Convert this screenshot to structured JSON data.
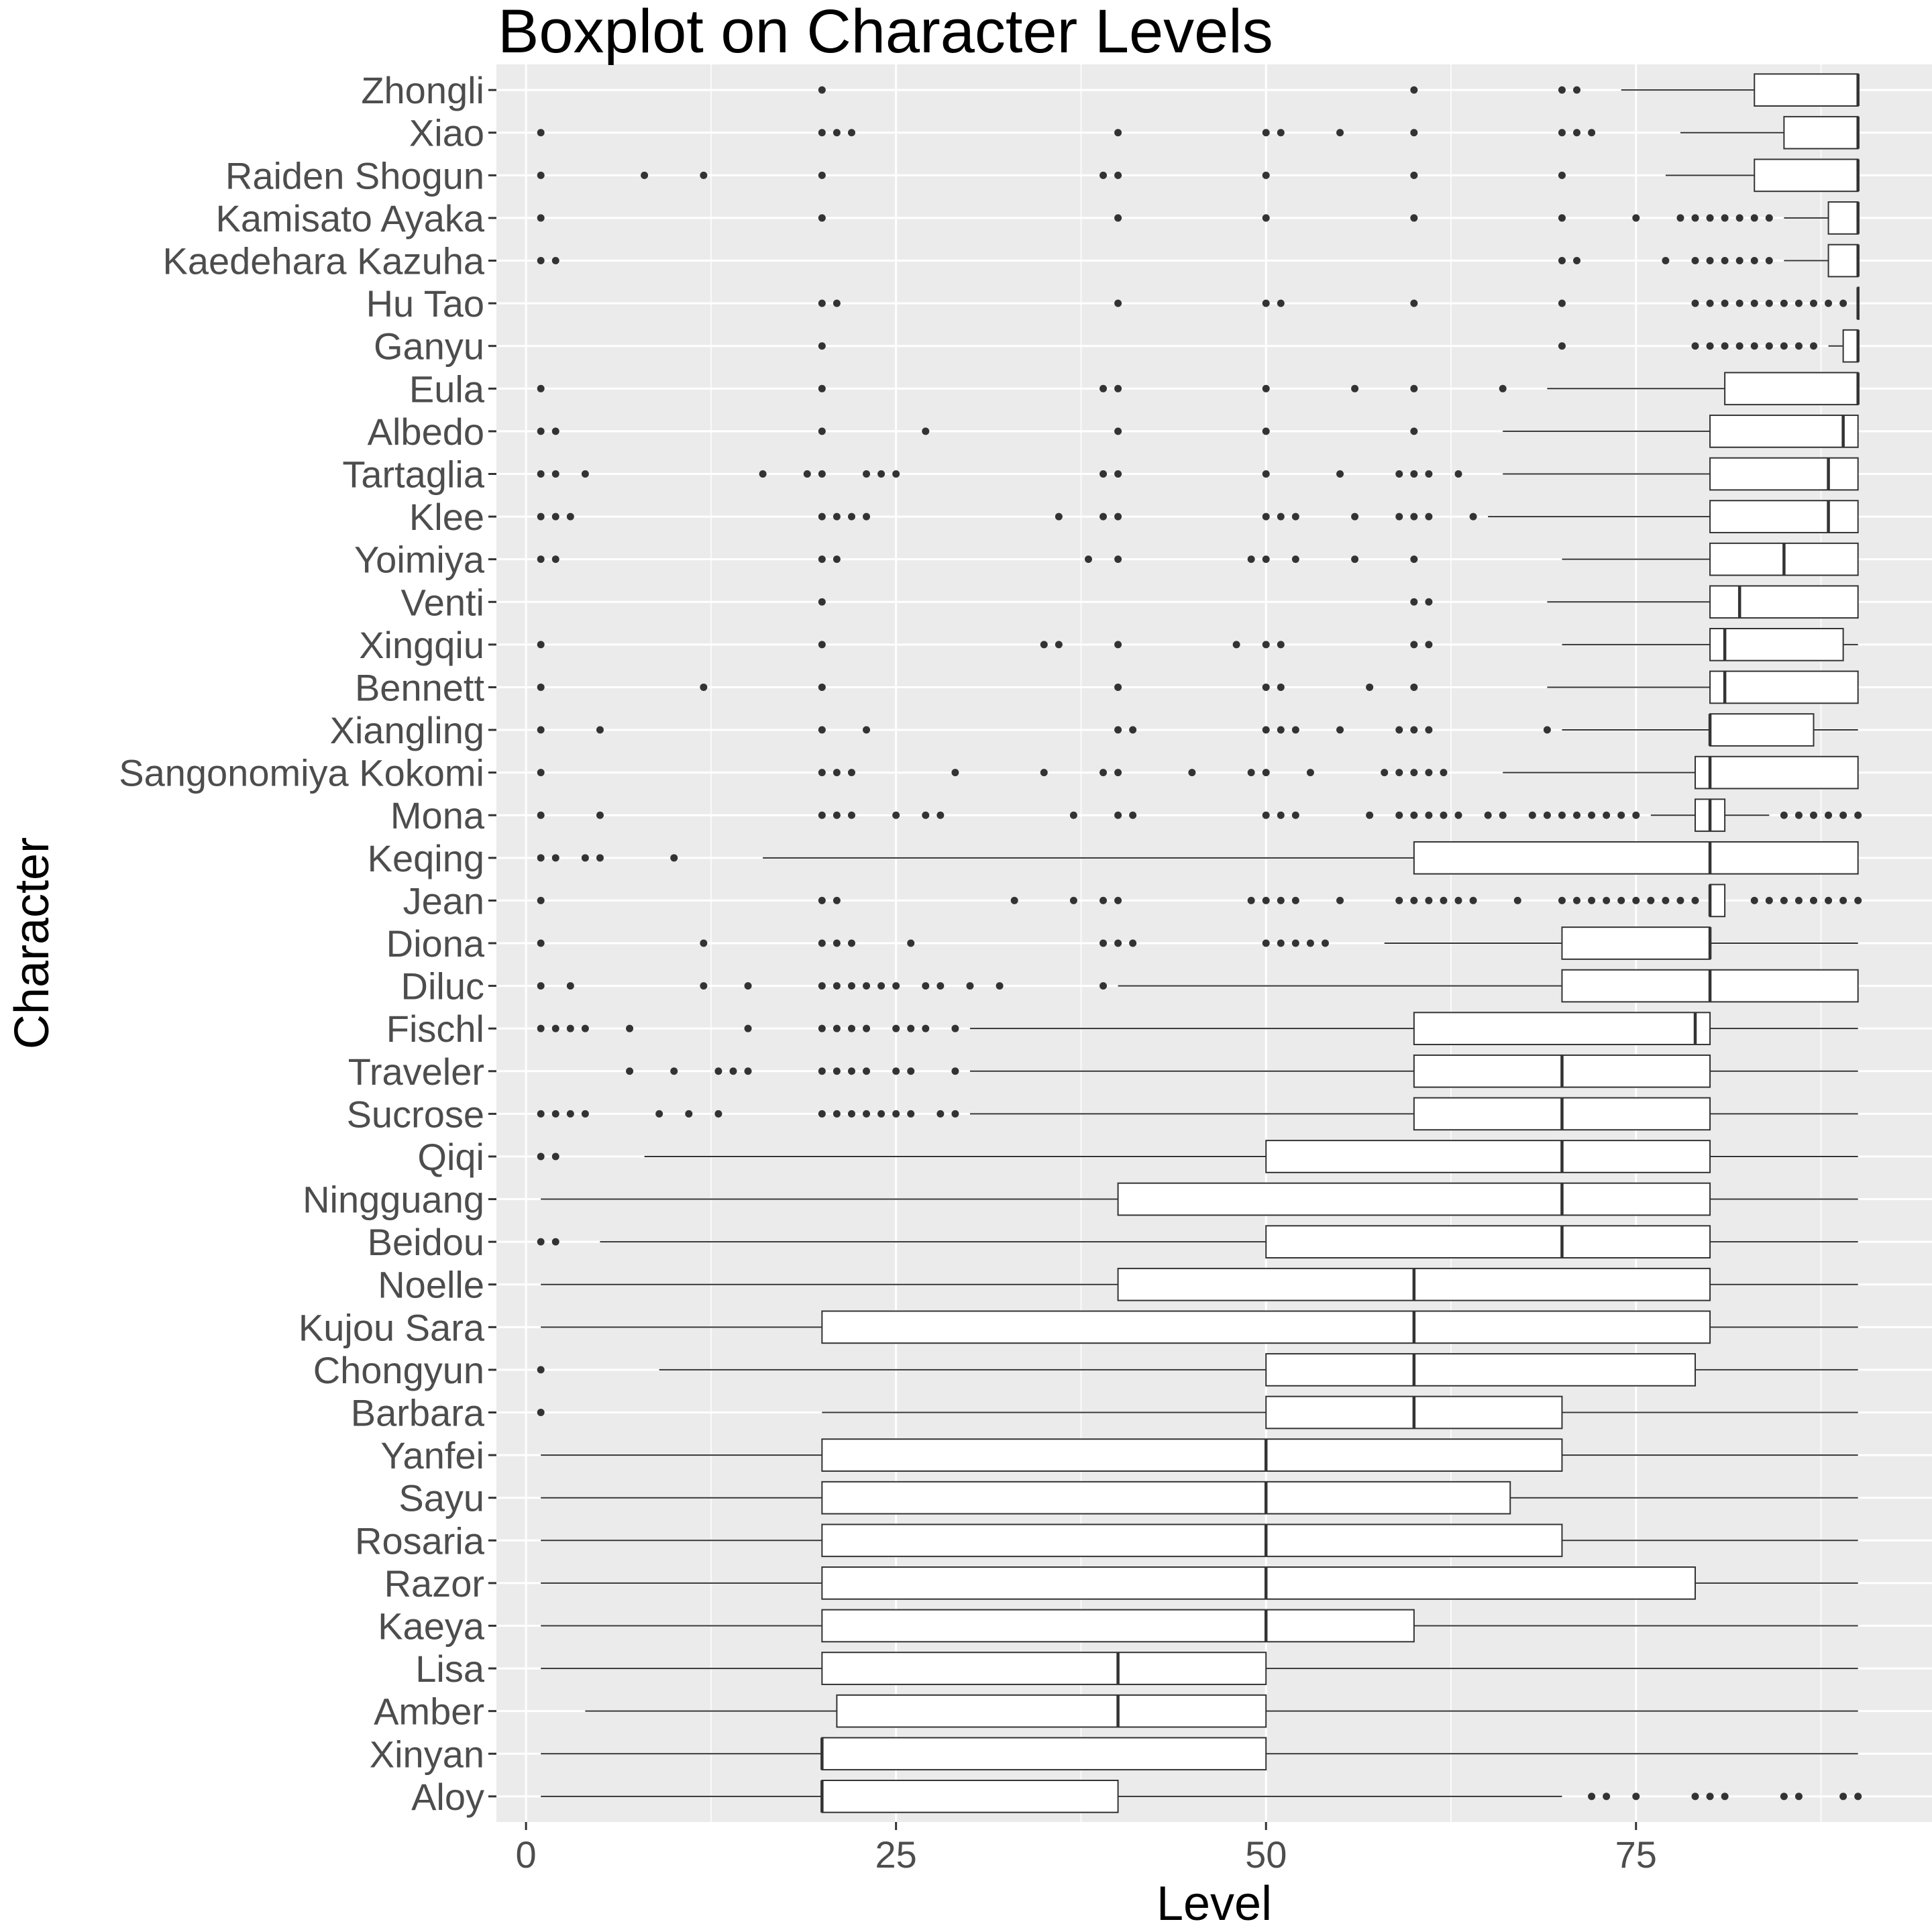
{
  "chart_data": {
    "type": "boxplot",
    "title": "Boxplot on Character Levels",
    "xlabel": "Level",
    "ylabel": "Character",
    "xlim": [
      -2,
      95
    ],
    "xticks": [
      0,
      25,
      50,
      75
    ],
    "grid": true,
    "colors": {
      "panel": "#ebebeb",
      "grid": "#ffffff",
      "box_fill": "#ffffff",
      "stroke": "#333333",
      "tick_text": "#4d4d4d"
    },
    "series": [
      {
        "name": "Zhongli",
        "whisker_low": 74,
        "q1": 83,
        "median": 90,
        "q3": 90,
        "whisker_high": 90,
        "outliers": [
          20,
          60,
          70,
          71
        ]
      },
      {
        "name": "Xiao",
        "whisker_low": 78,
        "q1": 85,
        "median": 90,
        "q3": 90,
        "whisker_high": 90,
        "outliers": [
          1,
          20,
          21,
          22,
          40,
          50,
          51,
          55,
          60,
          70,
          71,
          72
        ]
      },
      {
        "name": "Raiden Shogun",
        "whisker_low": 77,
        "q1": 83,
        "median": 90,
        "q3": 90,
        "whisker_high": 90,
        "outliers": [
          1,
          8,
          12,
          20,
          39,
          40,
          50,
          60,
          70
        ]
      },
      {
        "name": "Kamisato Ayaka",
        "whisker_low": 85,
        "q1": 88,
        "median": 90,
        "q3": 90,
        "whisker_high": 90,
        "outliers": [
          1,
          20,
          40,
          50,
          60,
          70,
          75,
          78,
          79,
          80,
          81,
          82,
          83,
          84
        ]
      },
      {
        "name": "Kaedehara Kazuha",
        "whisker_low": 85,
        "q1": 88,
        "median": 90,
        "q3": 90,
        "whisker_high": 90,
        "outliers": [
          1,
          2,
          70,
          71,
          77,
          79,
          80,
          81,
          82,
          83,
          84
        ]
      },
      {
        "name": "Hu Tao",
        "whisker_low": 90,
        "q1": 90,
        "median": 90,
        "q3": 90,
        "whisker_high": 90,
        "outliers": [
          20,
          21,
          40,
          50,
          51,
          60,
          70,
          79,
          80,
          81,
          82,
          83,
          84,
          85,
          86,
          87,
          88,
          89
        ]
      },
      {
        "name": "Ganyu",
        "whisker_low": 88,
        "q1": 89,
        "median": 90,
        "q3": 90,
        "whisker_high": 90,
        "outliers": [
          20,
          70,
          79,
          80,
          81,
          82,
          83,
          84,
          85,
          86,
          87
        ]
      },
      {
        "name": "Eula",
        "whisker_low": 69,
        "q1": 81,
        "median": 90,
        "q3": 90,
        "whisker_high": 90,
        "outliers": [
          1,
          20,
          39,
          40,
          50,
          56,
          60,
          66
        ]
      },
      {
        "name": "Albedo",
        "whisker_low": 66,
        "q1": 80,
        "median": 89,
        "q3": 90,
        "whisker_high": 90,
        "outliers": [
          1,
          2,
          20,
          27,
          40,
          50,
          60
        ]
      },
      {
        "name": "Tartaglia",
        "whisker_low": 66,
        "q1": 80,
        "median": 88,
        "q3": 90,
        "whisker_high": 90,
        "outliers": [
          1,
          2,
          4,
          16,
          19,
          20,
          23,
          24,
          25,
          39,
          40,
          50,
          55,
          59,
          60,
          61,
          63
        ]
      },
      {
        "name": "Klee",
        "whisker_low": 65,
        "q1": 80,
        "median": 88,
        "q3": 90,
        "whisker_high": 90,
        "outliers": [
          1,
          2,
          3,
          20,
          21,
          22,
          23,
          36,
          39,
          40,
          50,
          51,
          52,
          56,
          59,
          60,
          61,
          64
        ]
      },
      {
        "name": "Yoimiya",
        "whisker_low": 70,
        "q1": 80,
        "median": 85,
        "q3": 90,
        "whisker_high": 90,
        "outliers": [
          1,
          2,
          20,
          21,
          38,
          40,
          49,
          50,
          52,
          56,
          60
        ]
      },
      {
        "name": "Venti",
        "whisker_low": 69,
        "q1": 80,
        "median": 82,
        "q3": 90,
        "whisker_high": 90,
        "outliers": [
          20,
          60,
          61
        ]
      },
      {
        "name": "Xingqiu",
        "whisker_low": 70,
        "q1": 80,
        "median": 81,
        "q3": 89,
        "whisker_high": 90,
        "outliers": [
          1,
          20,
          35,
          36,
          40,
          48,
          50,
          51,
          60,
          61
        ]
      },
      {
        "name": "Bennett",
        "whisker_low": 69,
        "q1": 80,
        "median": 81,
        "q3": 90,
        "whisker_high": 90,
        "outliers": [
          1,
          12,
          20,
          40,
          50,
          51,
          57,
          60
        ]
      },
      {
        "name": "Xiangling",
        "whisker_low": 70,
        "q1": 80,
        "median": 80,
        "q3": 87,
        "whisker_high": 90,
        "outliers": [
          1,
          5,
          20,
          23,
          40,
          41,
          50,
          51,
          52,
          55,
          59,
          60,
          61,
          69
        ]
      },
      {
        "name": "Sangonomiya Kokomi",
        "whisker_low": 66,
        "q1": 79,
        "median": 80,
        "q3": 90,
        "whisker_high": 90,
        "outliers": [
          1,
          20,
          21,
          22,
          29,
          35,
          39,
          40,
          45,
          49,
          50,
          53,
          58,
          59,
          60,
          61,
          62
        ]
      },
      {
        "name": "Mona",
        "whisker_low": 76,
        "q1": 79,
        "median": 80,
        "q3": 81,
        "whisker_high": 84,
        "outliers": [
          1,
          5,
          20,
          21,
          22,
          25,
          27,
          28,
          37,
          40,
          41,
          50,
          51,
          52,
          57,
          59,
          60,
          61,
          62,
          63,
          65,
          66,
          68,
          69,
          70,
          71,
          72,
          73,
          74,
          75,
          85,
          86,
          87,
          88,
          89,
          90
        ]
      },
      {
        "name": "Keqing",
        "whisker_low": 16,
        "q1": 60,
        "median": 80,
        "q3": 90,
        "whisker_high": 90,
        "outliers": [
          1,
          2,
          4,
          5,
          10
        ]
      },
      {
        "name": "Jean",
        "whisker_low": 80,
        "q1": 80,
        "median": 80,
        "q3": 81,
        "whisker_high": 81,
        "outliers": [
          1,
          20,
          21,
          33,
          37,
          39,
          40,
          49,
          50,
          51,
          52,
          55,
          59,
          60,
          61,
          62,
          63,
          64,
          67,
          70,
          71,
          72,
          73,
          74,
          75,
          76,
          77,
          78,
          79,
          83,
          84,
          85,
          86,
          87,
          88,
          89,
          90
        ]
      },
      {
        "name": "Diona",
        "whisker_low": 58,
        "q1": 70,
        "median": 80,
        "q3": 80,
        "whisker_high": 90,
        "outliers": [
          1,
          12,
          20,
          21,
          22,
          26,
          39,
          40,
          41,
          50,
          51,
          52,
          53,
          54
        ]
      },
      {
        "name": "Diluc",
        "whisker_low": 40,
        "q1": 70,
        "median": 80,
        "q3": 90,
        "whisker_high": 90,
        "outliers": [
          1,
          3,
          12,
          15,
          20,
          21,
          22,
          23,
          24,
          25,
          27,
          28,
          30,
          32,
          39
        ]
      },
      {
        "name": "Fischl",
        "whisker_low": 30,
        "q1": 60,
        "median": 79,
        "q3": 80,
        "whisker_high": 90,
        "outliers": [
          1,
          2,
          3,
          4,
          7,
          15,
          20,
          21,
          22,
          23,
          25,
          26,
          27,
          29
        ]
      },
      {
        "name": "Traveler",
        "whisker_low": 30,
        "q1": 60,
        "median": 70,
        "q3": 80,
        "whisker_high": 90,
        "outliers": [
          7,
          10,
          13,
          14,
          15,
          20,
          21,
          22,
          23,
          25,
          26,
          29
        ]
      },
      {
        "name": "Sucrose",
        "whisker_low": 30,
        "q1": 60,
        "median": 70,
        "q3": 80,
        "whisker_high": 90,
        "outliers": [
          1,
          2,
          3,
          4,
          9,
          11,
          13,
          20,
          21,
          22,
          23,
          24,
          25,
          26,
          28,
          29
        ]
      },
      {
        "name": "Qiqi",
        "whisker_low": 8,
        "q1": 50,
        "median": 70,
        "q3": 80,
        "whisker_high": 90,
        "outliers": [
          1,
          2
        ]
      },
      {
        "name": "Ningguang",
        "whisker_low": 1,
        "q1": 40,
        "median": 70,
        "q3": 80,
        "whisker_high": 90,
        "outliers": []
      },
      {
        "name": "Beidou",
        "whisker_low": 5,
        "q1": 50,
        "median": 70,
        "q3": 80,
        "whisker_high": 90,
        "outliers": [
          1,
          2
        ]
      },
      {
        "name": "Noelle",
        "whisker_low": 1,
        "q1": 40,
        "median": 60,
        "q3": 80,
        "whisker_high": 90,
        "outliers": []
      },
      {
        "name": "Kujou Sara",
        "whisker_low": 1,
        "q1": 20,
        "median": 60,
        "q3": 80,
        "whisker_high": 90,
        "outliers": []
      },
      {
        "name": "Chongyun",
        "whisker_low": 9,
        "q1": 50,
        "median": 60,
        "q3": 79,
        "whisker_high": 90,
        "outliers": [
          1
        ]
      },
      {
        "name": "Barbara",
        "whisker_low": 20,
        "q1": 50,
        "median": 60,
        "q3": 70,
        "whisker_high": 90,
        "outliers": [
          1
        ]
      },
      {
        "name": "Yanfei",
        "whisker_low": 1,
        "q1": 20,
        "median": 50,
        "q3": 70,
        "whisker_high": 90,
        "outliers": []
      },
      {
        "name": "Sayu",
        "whisker_low": 1,
        "q1": 20,
        "median": 50,
        "q3": 66.5,
        "whisker_high": 90,
        "outliers": []
      },
      {
        "name": "Rosaria",
        "whisker_low": 1,
        "q1": 20,
        "median": 50,
        "q3": 70,
        "whisker_high": 90,
        "outliers": []
      },
      {
        "name": "Razor",
        "whisker_low": 1,
        "q1": 20,
        "median": 50,
        "q3": 79,
        "whisker_high": 90,
        "outliers": []
      },
      {
        "name": "Kaeya",
        "whisker_low": 1,
        "q1": 20,
        "median": 50,
        "q3": 60,
        "whisker_high": 90,
        "outliers": []
      },
      {
        "name": "Lisa",
        "whisker_low": 1,
        "q1": 20,
        "median": 40,
        "q3": 50,
        "whisker_high": 90,
        "outliers": []
      },
      {
        "name": "Amber",
        "whisker_low": 4,
        "q1": 21,
        "median": 40,
        "q3": 50,
        "whisker_high": 90,
        "outliers": []
      },
      {
        "name": "Xinyan",
        "whisker_low": 1,
        "q1": 20,
        "median": 20,
        "q3": 50,
        "whisker_high": 90,
        "outliers": []
      },
      {
        "name": "Aloy",
        "whisker_low": 1,
        "q1": 20,
        "median": 20,
        "q3": 40,
        "whisker_high": 70,
        "outliers": [
          72,
          73,
          75,
          79,
          80,
          81,
          85,
          86,
          89,
          90
        ]
      }
    ]
  }
}
